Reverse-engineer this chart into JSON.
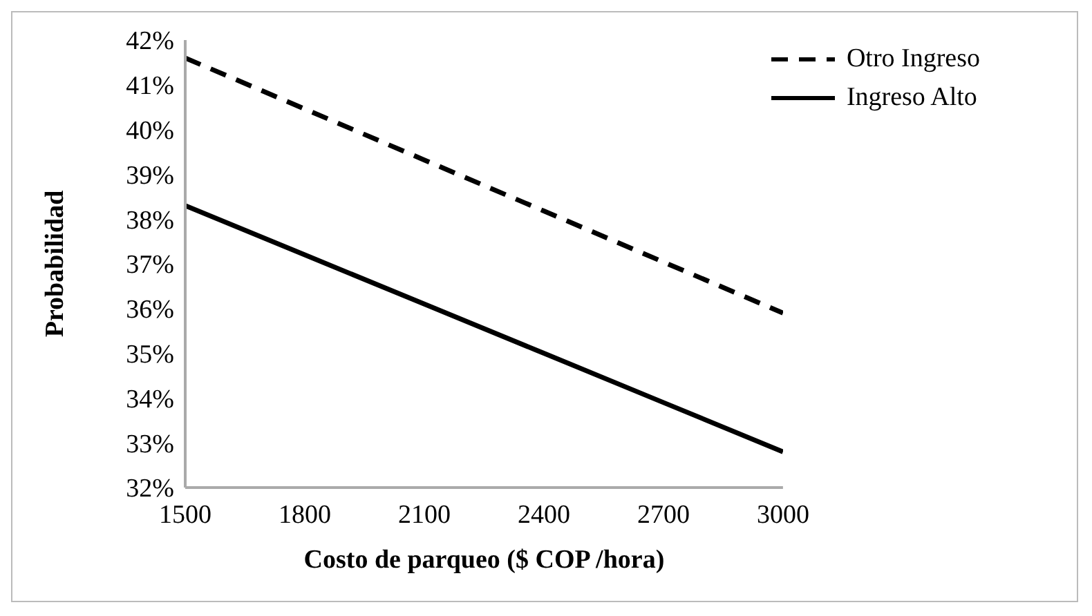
{
  "chart_data": {
    "type": "line",
    "xlabel": "Costo de parqueo ($ COP /hora)",
    "ylabel": "Probabilidad",
    "x": [
      1500,
      1800,
      2100,
      2400,
      2700,
      3000
    ],
    "series": [
      {
        "name": "Otro Ingreso",
        "color": "#000000",
        "line_style": "dashed",
        "values": [
          41.6,
          40.46,
          39.32,
          38.18,
          37.04,
          35.9
        ]
      },
      {
        "name": "Ingreso Alto",
        "color": "#000000",
        "line_style": "solid",
        "values": [
          38.3,
          37.2,
          36.1,
          35.0,
          33.9,
          32.8
        ]
      }
    ],
    "xlim": [
      1500,
      3000
    ],
    "xticks": [
      1500,
      1800,
      2100,
      2400,
      2700,
      3000
    ],
    "ylim": [
      32,
      42
    ],
    "yticks": [
      {
        "value": 32,
        "label": "32%"
      },
      {
        "value": 33,
        "label": "33%"
      },
      {
        "value": 34,
        "label": "34%"
      },
      {
        "value": 35,
        "label": "35%"
      },
      {
        "value": 36,
        "label": "36%"
      },
      {
        "value": 37,
        "label": "37%"
      },
      {
        "value": 38,
        "label": "38%"
      },
      {
        "value": 39,
        "label": "39%"
      },
      {
        "value": 40,
        "label": "40%"
      },
      {
        "value": 41,
        "label": "41%"
      },
      {
        "value": 42,
        "label": "42%"
      }
    ],
    "grid": false,
    "legend": "top right",
    "marker": "none"
  }
}
